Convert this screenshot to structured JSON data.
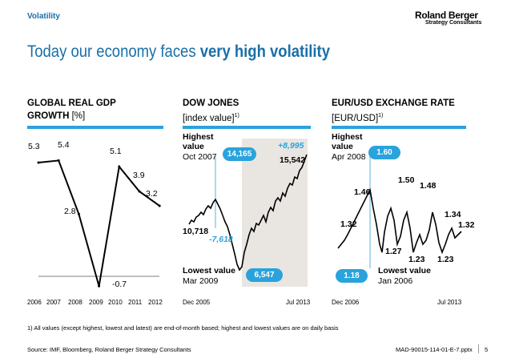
{
  "header": {
    "section": "Volatility",
    "brand": "Roland Berger",
    "brand_sub": "Strategy Consultants",
    "title_plain": "Today our economy faces ",
    "title_bold": "very high volatility"
  },
  "panels": [
    {
      "title": "GLOBAL REAL GDP",
      "subtitle_bold": "GROWTH",
      "subtitle_rest": " [%]",
      "footnote_mark": ""
    },
    {
      "title": "DOW JONES",
      "subtitle_bold": "",
      "subtitle_rest": "[index value]",
      "footnote_mark": "1)"
    },
    {
      "title": "EUR/USD EXCHANGE RATE",
      "subtitle_bold": "",
      "subtitle_rest": "[EUR/USD]",
      "footnote_mark": "1)"
    }
  ],
  "gdp": {
    "years": [
      "2006",
      "2007",
      "2008",
      "2009",
      "2010",
      "2011",
      "2012"
    ],
    "labels": [
      "5.3",
      "5.4",
      "2.8",
      "-0.7",
      "5.1",
      "3.9",
      "3.2"
    ]
  },
  "dow": {
    "highest_label": "Highest",
    "highest_label2": "value",
    "highest_date": "Oct 2007",
    "highest_value": "14,165",
    "lowest_label": "Lowest value",
    "lowest_date": "Mar 2009",
    "lowest_value": "6,547",
    "start_value": "10,718",
    "latest_value": "15,542",
    "change_up": "+8,995",
    "change_down": "-7,618",
    "x_start": "Dec 2005",
    "x_end": "Jul 2013"
  },
  "eur": {
    "highest_label": "Highest",
    "highest_label2": "value",
    "highest_date": "Apr 2008",
    "highest_value": "1.60",
    "lowest_label": "Lowest value",
    "lowest_date": "Jan 2006",
    "lowest_value": "1.18",
    "points": [
      "1.32",
      "1.46",
      "1.27",
      "1.50",
      "1.48",
      "1.23",
      "1.23",
      "1.34",
      "1.32"
    ],
    "x_start": "Dec 2006",
    "x_end": "Jul 2013"
  },
  "footer": {
    "note": "1) All values (except highest, lowest and latest) are end-of-month based; highest and lowest values are on daily basis",
    "source": "Source: IMF, Bloomberg, Roland Berger Strategy Consultants",
    "doc_id": "MAD-90015-114-01-E-7.pptx",
    "page": "5"
  },
  "chart_data": [
    {
      "type": "line",
      "title": "GLOBAL REAL GDP GROWTH [%]",
      "categories": [
        "2006",
        "2007",
        "2008",
        "2009",
        "2010",
        "2011",
        "2012"
      ],
      "values": [
        5.3,
        5.4,
        2.8,
        -0.7,
        5.1,
        3.9,
        3.2
      ],
      "ylim": [
        -1,
        6
      ]
    },
    {
      "type": "line",
      "title": "DOW JONES [index value]",
      "x_range": [
        "Dec 2005",
        "Jul 2013"
      ],
      "annotated": {
        "start": 10718,
        "highest": 14165,
        "lowest": 6547,
        "latest": 15542,
        "rise_from_low": 8995,
        "fall_from_high": -7618
      }
    },
    {
      "type": "line",
      "title": "EUR/USD EXCHANGE RATE [EUR/USD]",
      "x_range": [
        "Dec 2006",
        "Jul 2013"
      ],
      "annotated": {
        "highest": 1.6,
        "lowest": 1.18,
        "points": [
          1.32,
          1.46,
          1.27,
          1.5,
          1.48,
          1.23,
          1.23,
          1.34,
          1.32
        ]
      }
    }
  ]
}
